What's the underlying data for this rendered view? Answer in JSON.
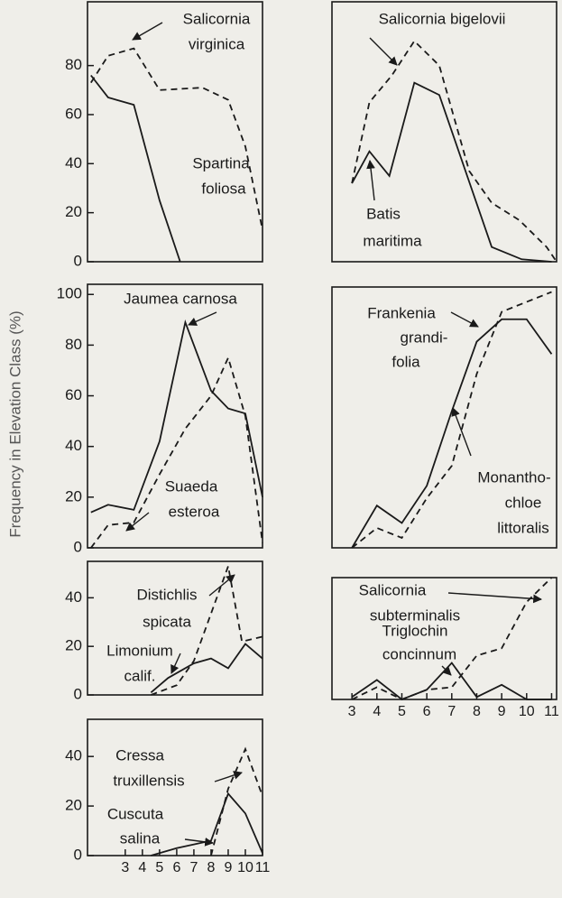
{
  "y_label": "Frequency in Elevation Class (%)",
  "chart_data": [
    {
      "type": "line",
      "xlim": [
        0.8,
        11
      ],
      "ylim": [
        0,
        106
      ],
      "yticks": [
        0,
        20,
        40,
        60,
        80
      ],
      "series": [
        {
          "name": [
            "Salicornia",
            "virginica"
          ],
          "dash": true,
          "color": "#1a1a1a",
          "x": [
            1,
            2,
            3.5,
            5,
            7.5,
            9,
            10,
            11
          ],
          "values": [
            73,
            84,
            87,
            70,
            71,
            66,
            47,
            13
          ]
        },
        {
          "name": [
            "Spartina",
            "foliosa"
          ],
          "dash": false,
          "color": "#1a1a1a",
          "x": [
            1,
            2,
            3.5,
            5,
            6.2
          ],
          "values": [
            76,
            67,
            64,
            25,
            0
          ]
        }
      ]
    },
    {
      "type": "line",
      "xlim": [
        0.8,
        11
      ],
      "ylim": [
        0,
        104
      ],
      "yticks": [
        0,
        20,
        40,
        60,
        80,
        100
      ],
      "series": [
        {
          "name": [
            "Jaumea carnosa"
          ],
          "dash": false,
          "color": "#1a1a1a",
          "x": [
            1,
            2,
            3.5,
            5,
            6.5,
            8,
            9,
            10,
            11
          ],
          "values": [
            14,
            17,
            15,
            42,
            89,
            62,
            55,
            53,
            20
          ]
        },
        {
          "name": [
            "Suaeda",
            "esteroa"
          ],
          "dash": true,
          "color": "#1a1a1a",
          "x": [
            1,
            2,
            3.5,
            5,
            6.5,
            8,
            9,
            10,
            11
          ],
          "values": [
            0,
            9,
            10,
            29,
            47,
            60,
            75,
            52,
            2
          ]
        }
      ]
    },
    {
      "type": "line",
      "xlim": [
        0.8,
        11
      ],
      "ylim": [
        0,
        55
      ],
      "yticks": [
        0,
        20,
        40
      ],
      "series": [
        {
          "name": [
            "Distichlis",
            "spicata"
          ],
          "dash": true,
          "color": "#1a1a1a",
          "x": [
            4.5,
            6,
            7,
            9,
            9.8,
            11
          ],
          "values": [
            0,
            4,
            14,
            53,
            22,
            24
          ]
        },
        {
          "name": [
            "Limonium",
            "calif."
          ],
          "dash": false,
          "color": "#1a1a1a",
          "x": [
            4.5,
            5.5,
            7,
            8,
            9,
            10,
            11
          ],
          "values": [
            1,
            7,
            13,
            15,
            11,
            21,
            15
          ]
        }
      ]
    },
    {
      "type": "line",
      "xlim": [
        0.8,
        11
      ],
      "ylim": [
        0,
        55
      ],
      "yticks": [
        0,
        20,
        40
      ],
      "xticks": [
        3,
        4,
        5,
        6,
        7,
        8,
        9,
        10,
        11
      ],
      "series": [
        {
          "name": [
            "Cressa",
            "truxillensis"
          ],
          "dash": true,
          "color": "#1a1a1a",
          "x": [
            8,
            9,
            10,
            11
          ],
          "values": [
            0,
            27,
            43,
            24
          ]
        },
        {
          "name": [
            "Cuscuta",
            "salina"
          ],
          "dash": false,
          "color": "#1a1a1a",
          "x": [
            4.5,
            6,
            8,
            9,
            10,
            11
          ],
          "values": [
            0,
            3,
            6,
            25,
            17,
            1
          ]
        }
      ]
    },
    {
      "type": "line",
      "xlim": [
        2.2,
        11.2
      ],
      "ylim": [
        0,
        106
      ],
      "series": [
        {
          "name": [
            "Salicornia bigelovii"
          ],
          "dash": true,
          "color": "#1a1a1a",
          "x": [
            3,
            3.7,
            4.6,
            5.5,
            6.5,
            7.7,
            8.6,
            9.7,
            10.8,
            11.2
          ],
          "values": [
            32,
            65,
            76,
            90,
            80,
            37,
            24,
            17,
            6,
            0
          ]
        },
        {
          "name": [
            "Batis",
            "maritima"
          ],
          "dash": false,
          "color": "#1a1a1a",
          "x": [
            3,
            3.7,
            4.5,
            5.5,
            6.5,
            8.6,
            9.8,
            11
          ],
          "values": [
            32,
            45,
            35,
            73,
            68,
            6,
            1,
            0
          ]
        }
      ]
    },
    {
      "type": "line",
      "xlim": [
        2.2,
        11.2
      ],
      "ylim": [
        0,
        105
      ],
      "series": [
        {
          "name": [
            "Frankenia",
            "grandi-",
            "folia"
          ],
          "dash": false,
          "color": "#1a1a1a",
          "x": [
            3,
            4,
            5,
            6,
            7,
            8,
            9,
            10,
            11
          ],
          "values": [
            0,
            17,
            10,
            25,
            55,
            83,
            92,
            92,
            78
          ]
        },
        {
          "name": [
            "Monantho-",
            "chloe",
            "littoralis"
          ],
          "dash": true,
          "color": "#1a1a1a",
          "x": [
            3,
            4,
            5,
            6,
            7,
            8,
            9,
            10,
            11
          ],
          "values": [
            0,
            8,
            4,
            20,
            33,
            70,
            95,
            99,
            103
          ]
        }
      ]
    },
    {
      "type": "line",
      "xlim": [
        2.2,
        11.2
      ],
      "ylim": [
        0,
        50
      ],
      "xticks": [
        3,
        4,
        5,
        6,
        7,
        8,
        9,
        10,
        11
      ],
      "series": [
        {
          "name": [
            "Salicornia",
            "subterminalis"
          ],
          "dash": true,
          "color": "#1a1a1a",
          "x": [
            3,
            4,
            5,
            6,
            7,
            8,
            9,
            10,
            11
          ],
          "values": [
            0,
            5,
            0,
            4,
            5,
            18,
            21,
            40,
            50
          ]
        },
        {
          "name": [
            "Triglochin",
            "concinnum"
          ],
          "dash": false,
          "color": "#1a1a1a",
          "x": [
            3,
            4,
            5,
            6,
            7,
            8,
            9,
            10,
            11
          ],
          "values": [
            1,
            8,
            0,
            4,
            15,
            1,
            6,
            0,
            0
          ]
        }
      ]
    }
  ]
}
